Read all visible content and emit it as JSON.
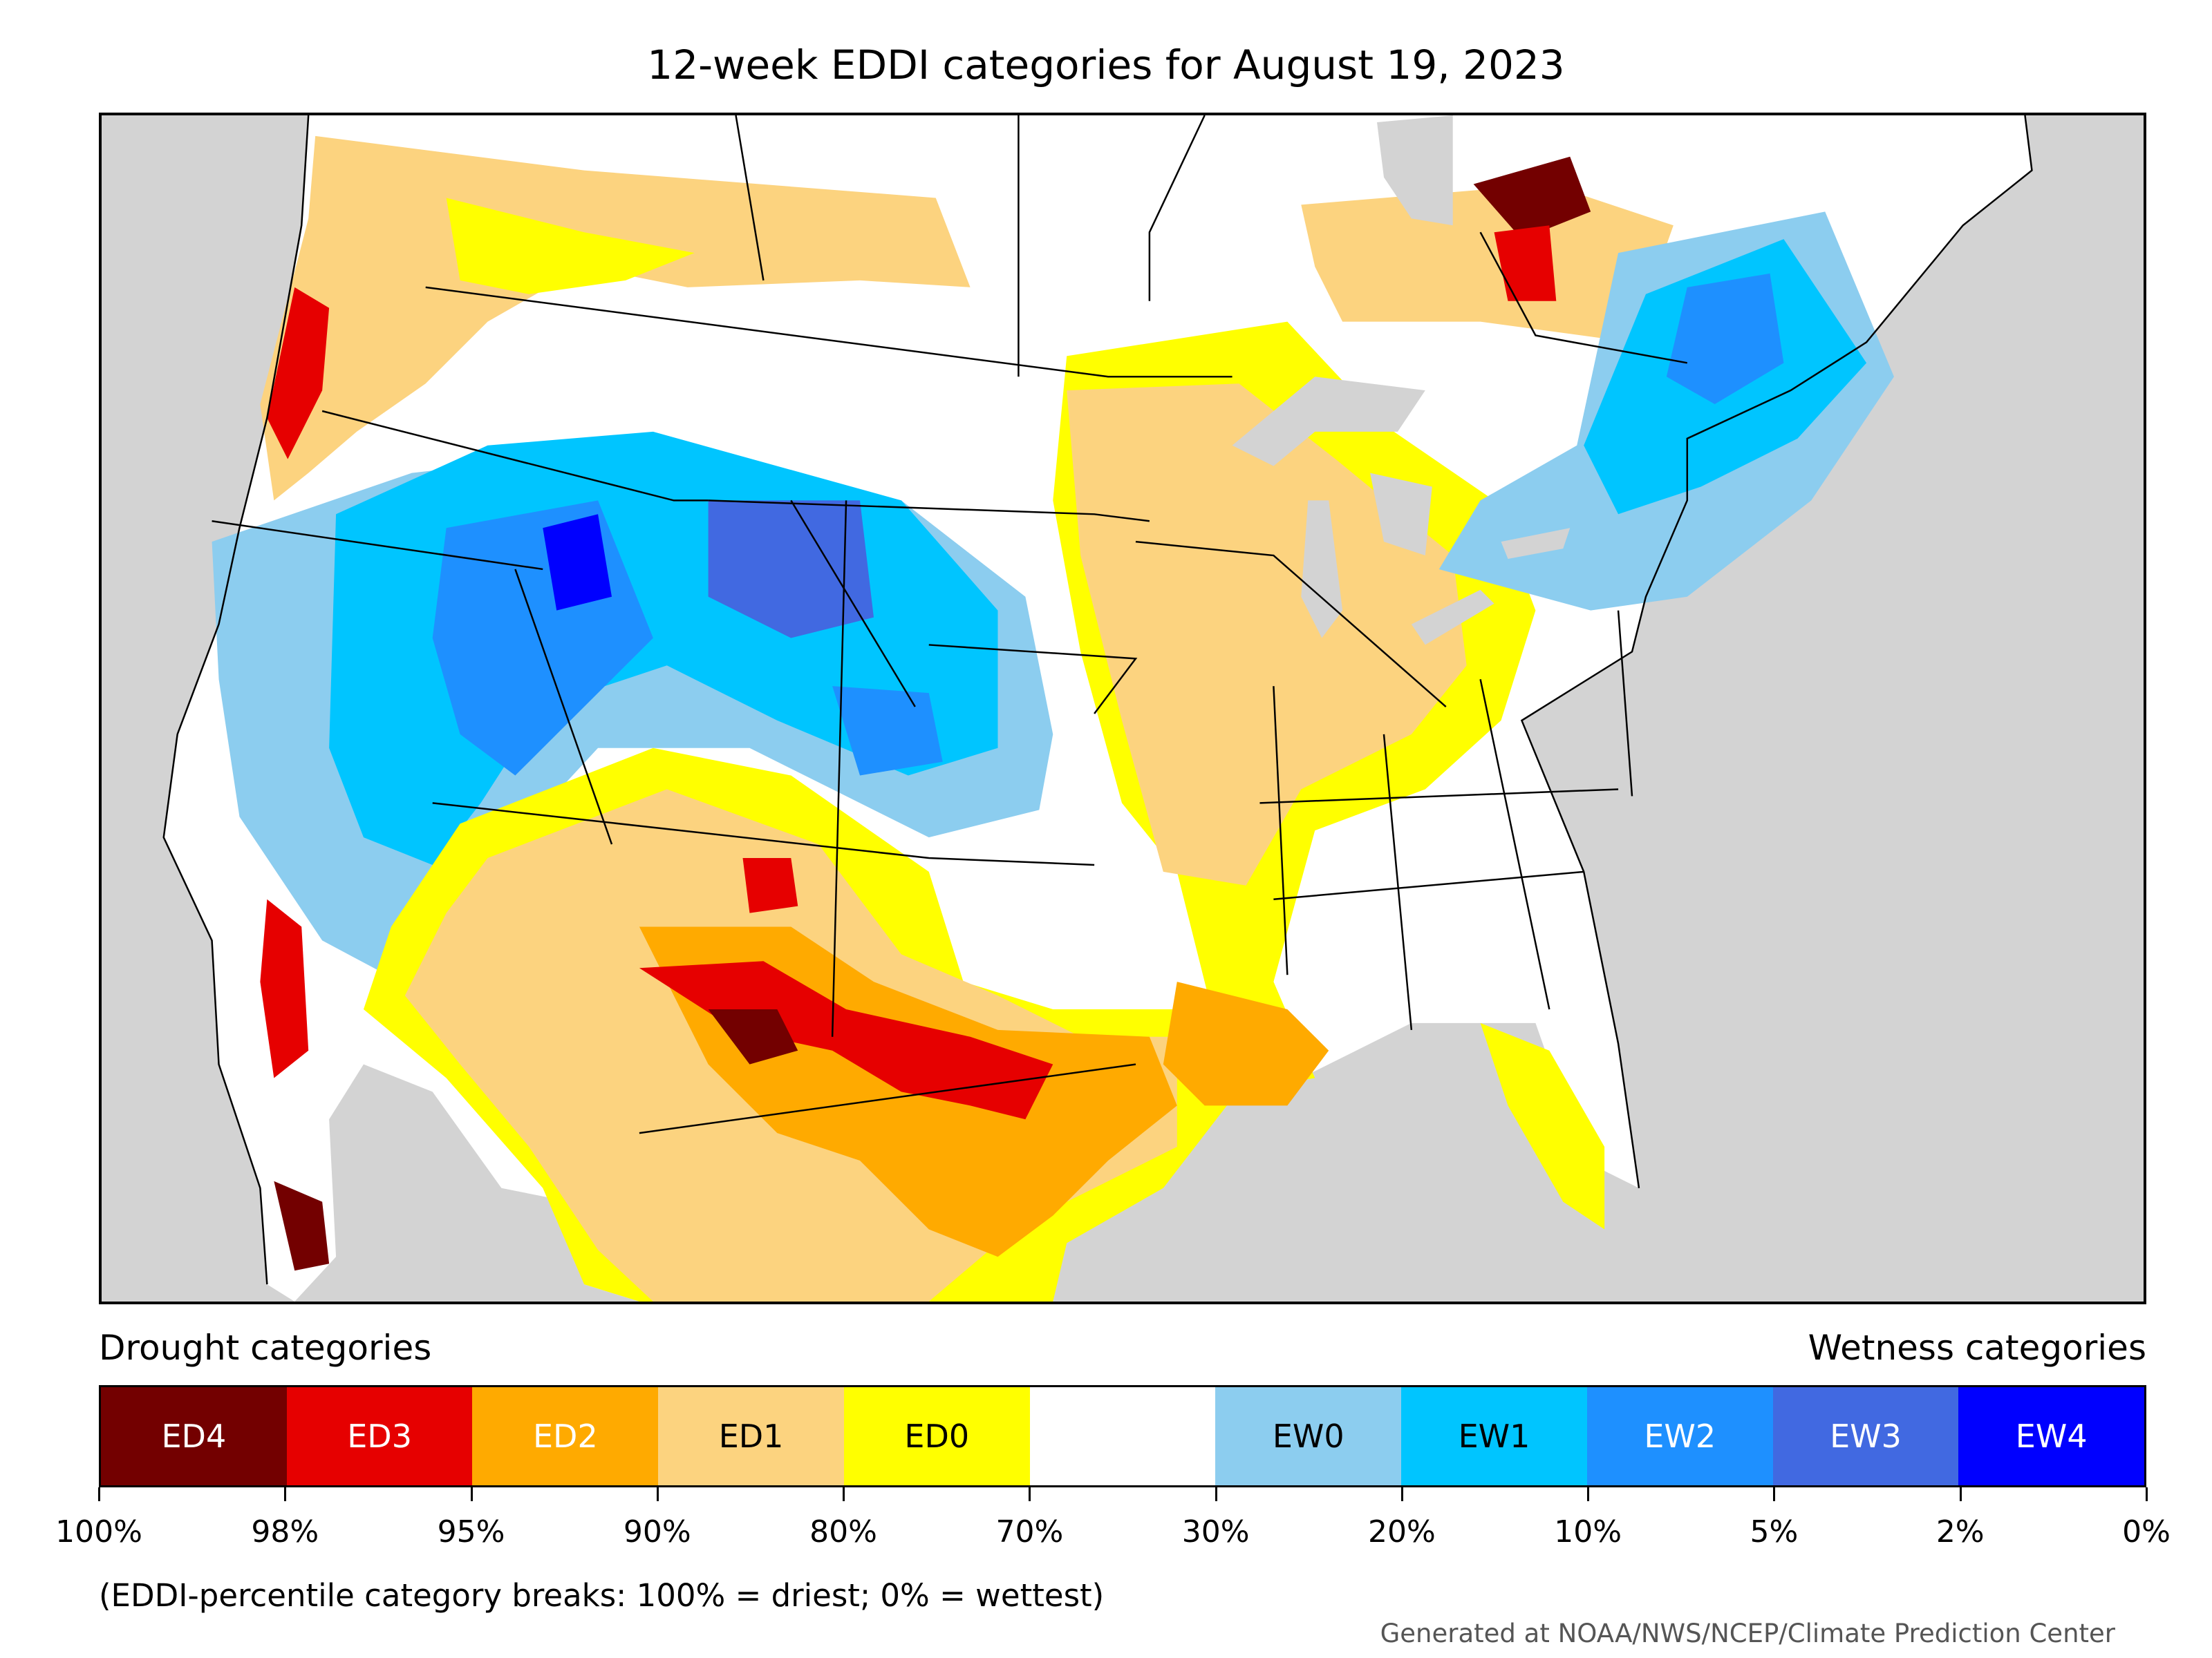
{
  "title": "12-week EDDI categories for August 19, 2023",
  "legend": {
    "left_label": "Drought categories",
    "right_label": "Wetness categories",
    "categories": [
      {
        "label": "ED4",
        "color": "#730000",
        "text_color": "#ffffff"
      },
      {
        "label": "ED3",
        "color": "#e60000",
        "text_color": "#ffffff"
      },
      {
        "label": "ED2",
        "color": "#ffaa00",
        "text_color": "#ffffff"
      },
      {
        "label": "ED1",
        "color": "#fcd37f",
        "text_color": "#000000"
      },
      {
        "label": "ED0",
        "color": "#ffff00",
        "text_color": "#000000"
      },
      {
        "label": "",
        "color": "#ffffff",
        "text_color": "#000000"
      },
      {
        "label": "EW0",
        "color": "#8ccdef",
        "text_color": "#000000"
      },
      {
        "label": "EW1",
        "color": "#00c5ff",
        "text_color": "#000000"
      },
      {
        "label": "EW2",
        "color": "#1e90ff",
        "text_color": "#ffffff"
      },
      {
        "label": "EW3",
        "color": "#4169e1",
        "text_color": "#ffffff"
      },
      {
        "label": "EW4",
        "color": "#0000ff",
        "text_color": "#ffffff"
      }
    ],
    "tick_labels": [
      "100%",
      "98%",
      "95%",
      "90%",
      "80%",
      "70%",
      "30%",
      "20%",
      "10%",
      "5%",
      "2%",
      "0%"
    ]
  },
  "note": "(EDDI-percentile category breaks: 100% = driest; 0% = wettest)",
  "credit": "Generated at NOAA/NWS/NCEP/Climate Prediction Center",
  "map": {
    "background_color": "#d3d3d3",
    "land_color": "#ffffff",
    "regions": [
      {
        "name": "pacific-northwest",
        "category": "ED1"
      },
      {
        "name": "great-basin-rockies",
        "category": "EW1"
      },
      {
        "name": "wyoming-core",
        "category": "EW3"
      },
      {
        "name": "southwest-texas",
        "category": "ED2"
      },
      {
        "name": "texas-newmexico-border",
        "category": "ED3"
      },
      {
        "name": "midwest",
        "category": "ED1"
      },
      {
        "name": "southeast",
        "category": "ED0"
      },
      {
        "name": "northeast",
        "category": "EW1"
      },
      {
        "name": "ontario",
        "category": "ED4"
      }
    ]
  }
}
